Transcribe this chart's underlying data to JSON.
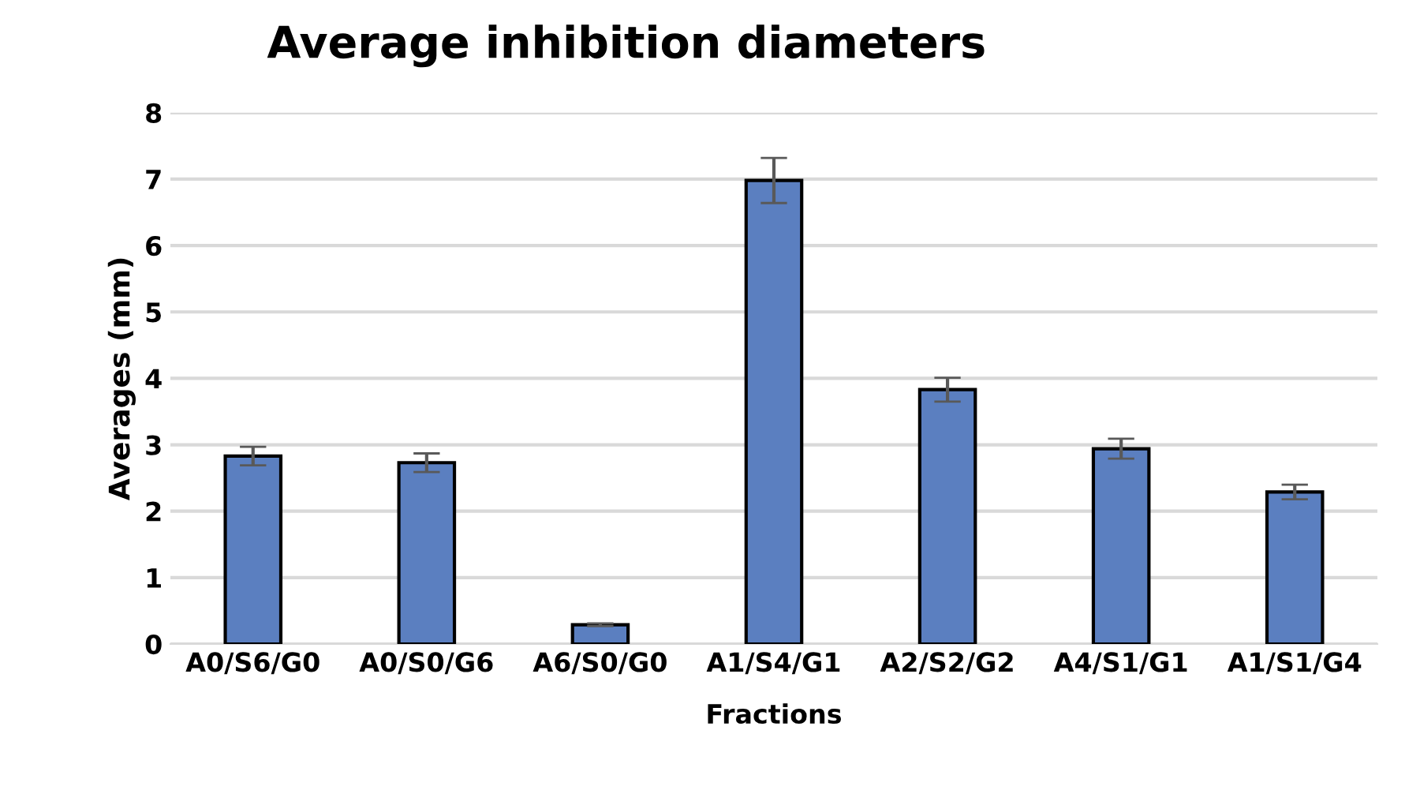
{
  "chart_data": {
    "type": "bar",
    "title": "Average inhibition diameters",
    "xlabel": "Fractions",
    "ylabel": "Averages (mm)",
    "categories": [
      "A0/S6/G0",
      "A0/S0/G6",
      "A6/S0/G0",
      "A1/S4/G1",
      "A2/S2/G2",
      "A4/S1/G1",
      "A1/S1/G4"
    ],
    "values": [
      2.83,
      2.73,
      0.29,
      6.98,
      3.83,
      2.94,
      2.29
    ],
    "errors": [
      0.14,
      0.14,
      0.02,
      0.34,
      0.18,
      0.15,
      0.11
    ],
    "color": "#5b7fc0",
    "ylim": [
      0,
      8
    ],
    "yticks": [
      0,
      1,
      2,
      3,
      4,
      5,
      6,
      7,
      8
    ],
    "grid": "y",
    "legend": false
  }
}
